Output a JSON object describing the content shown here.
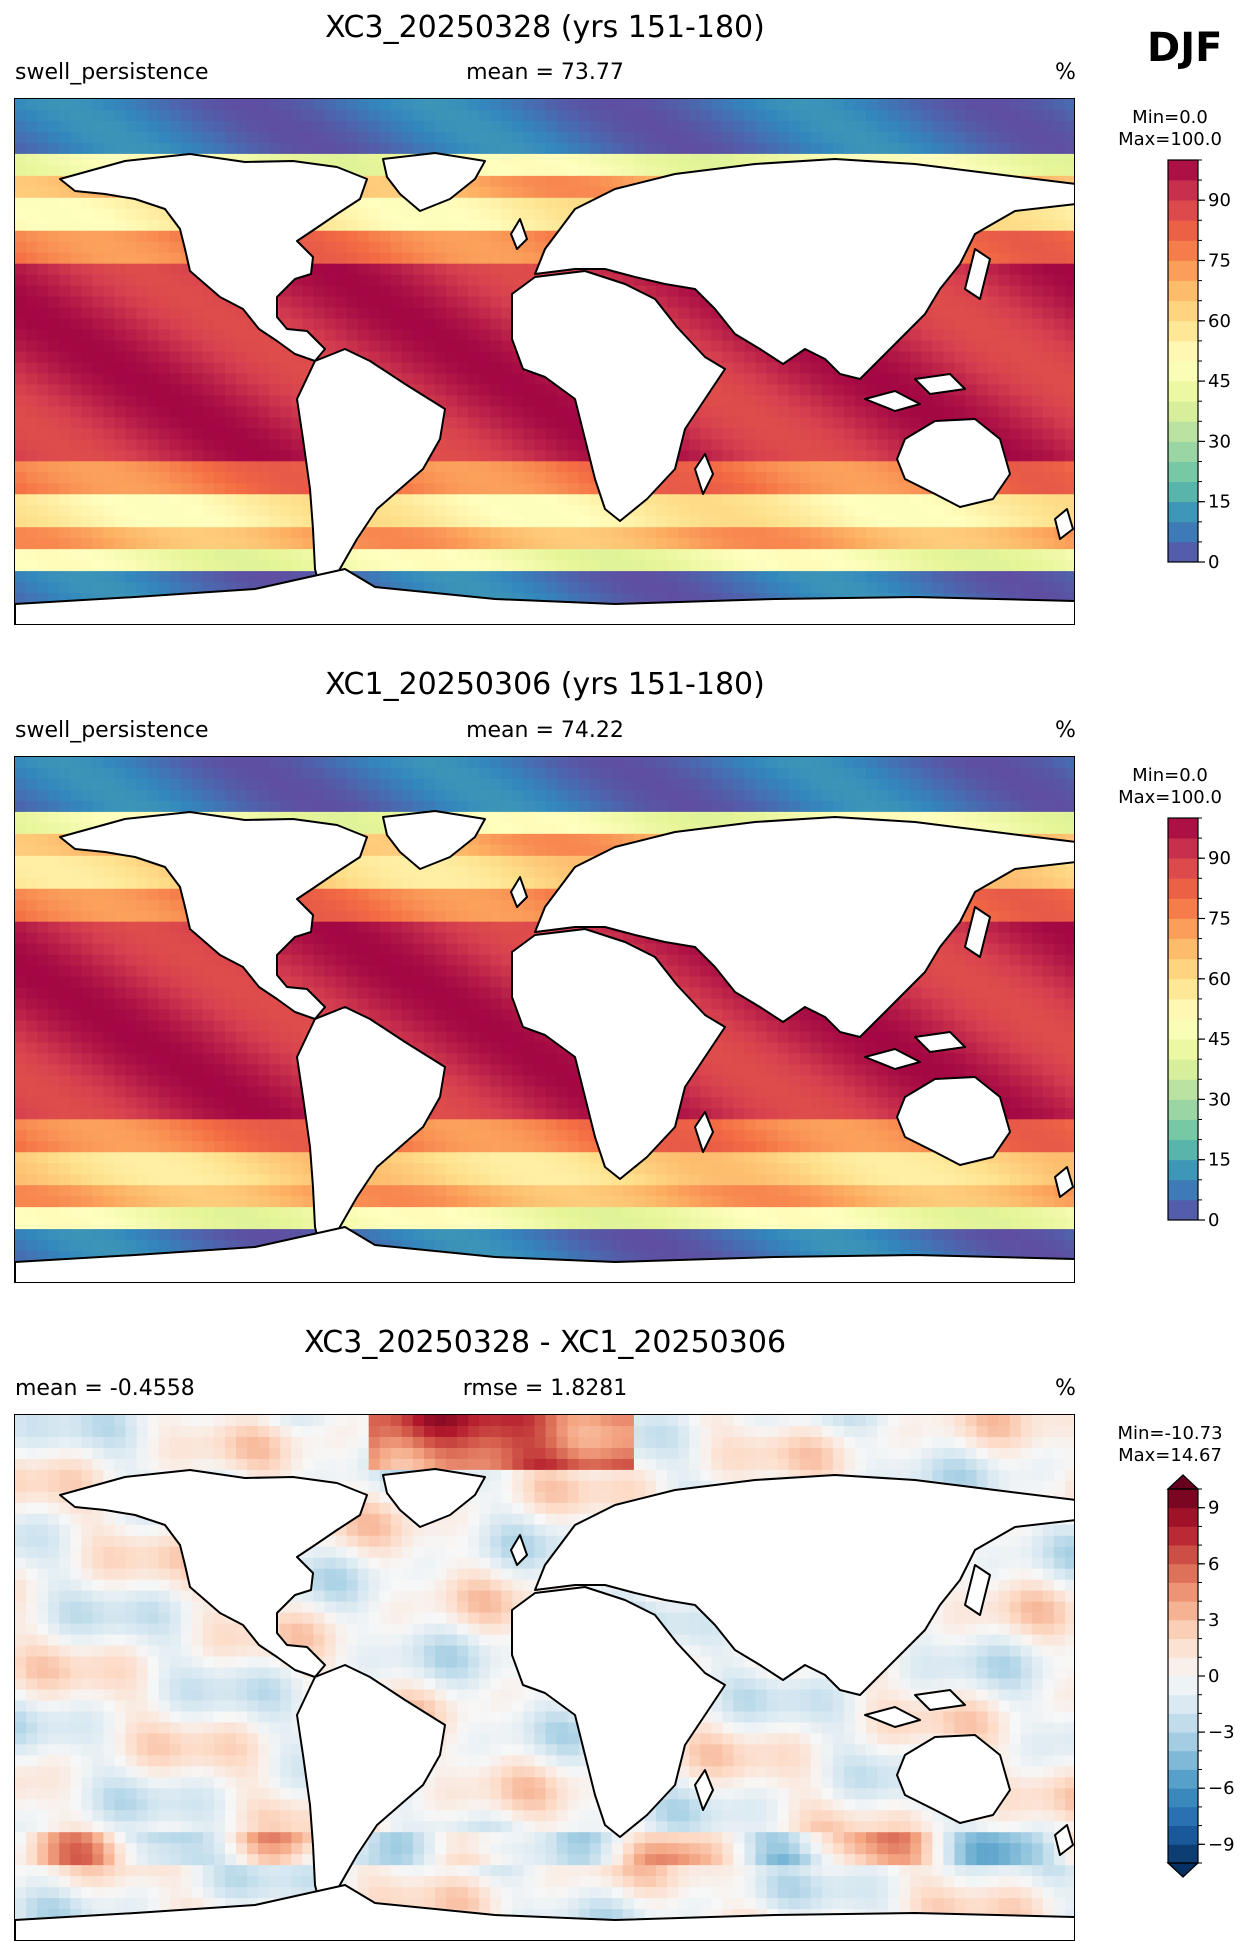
{
  "season": "DJF",
  "panels": [
    {
      "id": "test",
      "title": "XC3_20250328 (yrs 151-180)",
      "left": "swell_persistence",
      "center": "mean = 73.77",
      "right": "%",
      "cbar_min": "Min=0.0",
      "cbar_max": "Max=100.0",
      "cmap": "Spectral_r",
      "ticks": [
        "0",
        "15",
        "30",
        "45",
        "60",
        "75",
        "90"
      ],
      "tick_values": [
        0,
        15,
        30,
        45,
        60,
        75,
        90
      ],
      "levels": [
        0,
        5,
        10,
        15,
        20,
        25,
        30,
        35,
        40,
        45,
        50,
        55,
        60,
        65,
        70,
        75,
        80,
        85,
        90,
        95,
        100
      ]
    },
    {
      "id": "ref",
      "title": "XC1_20250306 (yrs 151-180)",
      "left": "swell_persistence",
      "center": "mean = 74.22",
      "right": "%",
      "cbar_min": "Min=0.0",
      "cbar_max": "Max=100.0",
      "cmap": "Spectral_r",
      "ticks": [
        "0",
        "15",
        "30",
        "45",
        "60",
        "75",
        "90"
      ],
      "tick_values": [
        0,
        15,
        30,
        45,
        60,
        75,
        90
      ],
      "levels": [
        0,
        5,
        10,
        15,
        20,
        25,
        30,
        35,
        40,
        45,
        50,
        55,
        60,
        65,
        70,
        75,
        80,
        85,
        90,
        95,
        100
      ]
    },
    {
      "id": "diff",
      "title": "XC3_20250328 - XC1_20250306",
      "left": "mean = -0.4558",
      "center": "rmse = 1.8281",
      "right": "%",
      "cbar_min": "Min=-10.73",
      "cbar_max": "Max=14.67",
      "cmap": "RdBu_r",
      "ticks": [
        "−9",
        "−6",
        "−3",
        "0",
        "3",
        "6",
        "9"
      ],
      "tick_values": [
        -9,
        -6,
        -3,
        0,
        3,
        6,
        9
      ],
      "levels": [
        -10,
        -9,
        -8,
        -7,
        -6,
        -5,
        -4,
        -3,
        -2,
        -1,
        0,
        1,
        2,
        3,
        4,
        5,
        6,
        7,
        8,
        9,
        10
      ]
    }
  ],
  "colors": {
    "spectral_r": [
      "#5e4fa2",
      "#3288bd",
      "#66c2a5",
      "#abdda4",
      "#e6f598",
      "#ffffbf",
      "#fee08b",
      "#fdae61",
      "#f46d43",
      "#d53e4f",
      "#9e0142"
    ],
    "rdbu_r": [
      "#053061",
      "#2166ac",
      "#4393c3",
      "#92c5de",
      "#d1e5f0",
      "#f7f7f7",
      "#fddbc7",
      "#f4a582",
      "#d6604d",
      "#b2182b",
      "#67001f"
    ]
  }
}
